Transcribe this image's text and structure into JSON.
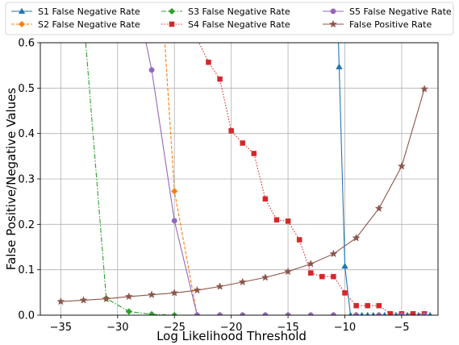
{
  "chart_data": {
    "type": "line",
    "xlabel": "Log Likelihood Threshold",
    "ylabel": "False Positive/Negative Values",
    "xlim": [
      -36.8,
      -1.8
    ],
    "ylim": [
      0,
      0.6
    ],
    "xticks": [
      -35,
      -30,
      -25,
      -20,
      -15,
      -10,
      -5
    ],
    "yticks": [
      0.0,
      0.1,
      0.2,
      0.3,
      0.4,
      0.5,
      0.6
    ],
    "xtick_labels": [
      "−35",
      "−30",
      "−25",
      "−20",
      "−15",
      "−10",
      "−5"
    ],
    "ytick_labels": [
      "0.0",
      "0.1",
      "0.2",
      "0.3",
      "0.4",
      "0.5",
      "0.6"
    ],
    "grid": true,
    "legend_position": "top",
    "series": [
      {
        "name": "S1 False Negative Rate",
        "color": "#1f77b4",
        "marker": "triangle",
        "dash": "solid",
        "x": [
          -11,
          -10.5,
          -10,
          -9.5,
          -9,
          -8.5,
          -8,
          -7.5,
          -7,
          -6.5,
          -6,
          -5.5,
          -5,
          -4.5,
          -4,
          -3.5,
          -3,
          -2.5
        ],
        "y": [
          0.98,
          0.547,
          0.108,
          0.0,
          0.0,
          0.0,
          0.0,
          0.0,
          0.0,
          0.0,
          0.0,
          0.0,
          0.0,
          0.0,
          0.0,
          0.0,
          0.0,
          0.0
        ]
      },
      {
        "name": "S2 False Negative Rate",
        "color": "#ff7f0e",
        "marker": "diamond",
        "dash": "dashed",
        "x": [
          -26,
          -25,
          -23,
          -21,
          -19,
          -17,
          -15,
          -13,
          -11,
          -9,
          -7,
          -5,
          -3
        ],
        "y": [
          0.66,
          0.273,
          0.0,
          0.0,
          0.0,
          0.0,
          0.0,
          0.0,
          0.0,
          0.0,
          0.0,
          0.0,
          0.0
        ]
      },
      {
        "name": "S3 False Negative Rate",
        "color": "#2ca02c",
        "marker": "diamond",
        "dash": "dashdot",
        "x": [
          -33,
          -31,
          -29,
          -27,
          -25,
          -23,
          -21,
          -19,
          -17,
          -15,
          -13,
          -11,
          -9,
          -7,
          -5,
          -3
        ],
        "y": [
          0.66,
          0.037,
          0.008,
          0.002,
          0.0,
          0.0,
          0.0,
          0.0,
          0.0,
          0.0,
          0.0,
          0.0,
          0.0,
          0.0,
          0.0,
          0.0
        ]
      },
      {
        "name": "S4 False Negative Rate",
        "color": "#d62728",
        "marker": "square",
        "dash": "dotted",
        "x": [
          -24,
          -22,
          -21,
          -20,
          -19,
          -18,
          -17,
          -16,
          -15,
          -14,
          -13,
          -12,
          -11,
          -10,
          -9,
          -8,
          -7,
          -6,
          -5,
          -4,
          -3
        ],
        "y": [
          0.66,
          0.557,
          0.52,
          0.406,
          0.379,
          0.356,
          0.256,
          0.21,
          0.207,
          0.166,
          0.093,
          0.085,
          0.085,
          0.049,
          0.021,
          0.021,
          0.021,
          0.003,
          0.003,
          0.003,
          0.003
        ]
      },
      {
        "name": "S5 False Negative Rate",
        "color": "#9467bd",
        "marker": "circle",
        "dash": "solid",
        "x": [
          -28,
          -27,
          -25,
          -23,
          -21,
          -19,
          -17,
          -15,
          -13,
          -11,
          -9,
          -7,
          -5,
          -3
        ],
        "y": [
          0.66,
          0.54,
          0.208,
          0.0,
          0.0,
          0.0,
          0.0,
          0.0,
          0.0,
          0.0,
          0.0,
          0.0,
          0.0,
          0.0
        ]
      },
      {
        "name": "False Positive Rate",
        "color": "#8c564b",
        "marker": "star",
        "dash": "solid",
        "x": [
          -35,
          -33,
          -31,
          -29,
          -27,
          -25,
          -23,
          -21,
          -19,
          -17,
          -15,
          -13,
          -11,
          -9,
          -7,
          -5,
          -3
        ],
        "y": [
          0.03,
          0.033,
          0.036,
          0.041,
          0.045,
          0.049,
          0.055,
          0.063,
          0.073,
          0.083,
          0.096,
          0.113,
          0.135,
          0.17,
          0.235,
          0.328,
          0.498
        ]
      }
    ]
  }
}
